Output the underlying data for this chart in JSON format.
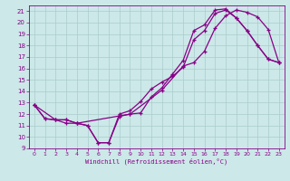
{
  "title": "",
  "xlabel": "Windchill (Refroidissement éolien,°C)",
  "bg_color": "#cce8e8",
  "grid_color": "#aacccc",
  "line_color": "#880088",
  "xlim": [
    -0.5,
    23.5
  ],
  "ylim": [
    9,
    21.5
  ],
  "xticks": [
    0,
    1,
    2,
    3,
    4,
    5,
    6,
    7,
    8,
    9,
    10,
    11,
    12,
    13,
    14,
    15,
    16,
    17,
    18,
    19,
    20,
    21,
    22,
    23
  ],
  "yticks": [
    9,
    10,
    11,
    12,
    13,
    14,
    15,
    16,
    17,
    18,
    19,
    20,
    21
  ],
  "line1_x": [
    0,
    1,
    2,
    3,
    4,
    5,
    6,
    7,
    8,
    9,
    10,
    11,
    12,
    13,
    14,
    15,
    16,
    17,
    18,
    19,
    20,
    21,
    22,
    23
  ],
  "line1_y": [
    12.8,
    11.6,
    11.5,
    11.5,
    11.2,
    11.0,
    9.5,
    9.5,
    11.8,
    12.0,
    12.1,
    13.5,
    14.3,
    15.5,
    16.7,
    19.3,
    19.8,
    21.1,
    21.2,
    20.4,
    19.3,
    18.0,
    16.8,
    16.5
  ],
  "line2_x": [
    0,
    1,
    2,
    3,
    4,
    5,
    6,
    7,
    8,
    9,
    10,
    11,
    12,
    13,
    14,
    15,
    16,
    17,
    18,
    19,
    20,
    21,
    22,
    23
  ],
  "line2_y": [
    12.8,
    11.6,
    11.5,
    11.5,
    11.2,
    11.0,
    9.5,
    9.5,
    12.0,
    12.3,
    13.1,
    14.2,
    14.8,
    15.3,
    16.1,
    18.5,
    19.3,
    20.8,
    21.1,
    20.4,
    19.3,
    18.0,
    16.8,
    16.5
  ],
  "line3_x": [
    0,
    2,
    3,
    4,
    9,
    12,
    14,
    15,
    16,
    17,
    18,
    19,
    20,
    21,
    22,
    23
  ],
  "line3_y": [
    12.8,
    11.5,
    11.2,
    11.2,
    12.0,
    14.1,
    16.2,
    16.5,
    17.5,
    19.5,
    20.6,
    21.1,
    20.9,
    20.5,
    19.4,
    16.5
  ]
}
